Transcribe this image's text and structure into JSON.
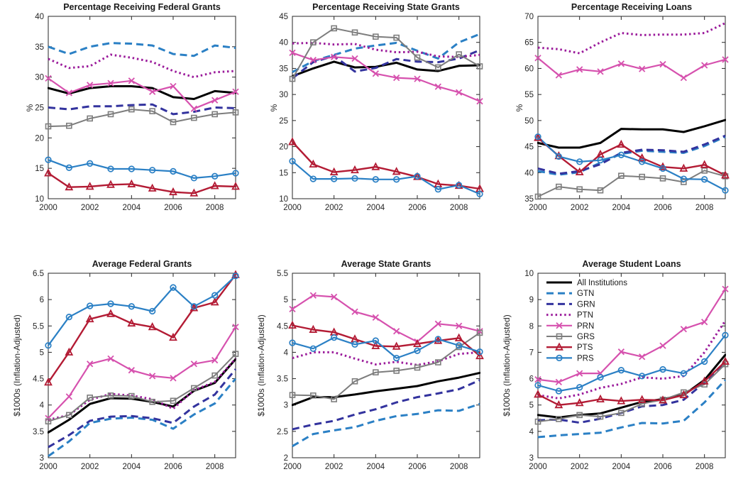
{
  "figure": {
    "background": "#ffffff",
    "axis_color": "#262626",
    "tick_label_color": "#262626",
    "title_color": "#1a1a1a"
  },
  "series_styles": [
    {
      "name": "All Institutions",
      "color": "#000000",
      "dash": "",
      "width": 3.0,
      "marker": "none"
    },
    {
      "name": "GTN",
      "color": "#2b80c5",
      "dash": "10 6",
      "width": 3.0,
      "marker": "none"
    },
    {
      "name": "GRN",
      "color": "#33339e",
      "dash": "10 6",
      "width": 3.0,
      "marker": "none"
    },
    {
      "name": "PTN",
      "color": "#9b1b9b",
      "dash": "2.5 3.8",
      "width": 3.0,
      "marker": "none"
    },
    {
      "name": "PRN",
      "color": "#d651ae",
      "dash": "",
      "width": 2.2,
      "marker": "x"
    },
    {
      "name": "GRS",
      "color": "#7d7d7d",
      "dash": "",
      "width": 2.0,
      "marker": "square"
    },
    {
      "name": "PTS",
      "color": "#b31b34",
      "dash": "",
      "width": 2.4,
      "marker": "triangle"
    },
    {
      "name": "PRS",
      "color": "#2b80c5",
      "dash": "",
      "width": 2.2,
      "marker": "circle"
    }
  ],
  "legend": {
    "location": "top-left-of-average-student-loans",
    "entries": [
      "All Institutions",
      "GTN",
      "GRN",
      "PTN",
      "PRN",
      "GRS",
      "PTS",
      "PRS"
    ]
  },
  "xticks": [
    2000,
    2002,
    2004,
    2006,
    2008
  ],
  "xtick_labels": [
    "2000",
    "2002",
    "2004",
    "2006",
    "2008"
  ],
  "chart_data": [
    {
      "type": "line",
      "title": "Percentage Receiving Federal Grants",
      "ylabel": "%",
      "xlim": [
        2000,
        2009
      ],
      "ylim": [
        10,
        40
      ],
      "yticks": [
        10,
        15,
        20,
        25,
        30,
        35,
        40
      ],
      "x": [
        2000,
        2001,
        2002,
        2003,
        2004,
        2005,
        2006,
        2007,
        2008,
        2009
      ],
      "legend_shown": false,
      "series": [
        {
          "name": "All Institutions",
          "values": [
            28.2,
            27.3,
            28.2,
            28.5,
            28.5,
            28.2,
            26.7,
            26.4,
            27.7,
            27.4
          ]
        },
        {
          "name": "GTN",
          "values": [
            35.0,
            33.8,
            35.0,
            35.6,
            35.5,
            35.2,
            33.8,
            33.5,
            35.2,
            34.8
          ]
        },
        {
          "name": "GRN",
          "values": [
            25.0,
            24.7,
            25.2,
            25.2,
            25.4,
            25.5,
            23.9,
            24.3,
            25.0,
            24.9
          ]
        },
        {
          "name": "PTN",
          "values": [
            33.0,
            31.5,
            31.8,
            33.7,
            33.2,
            32.5,
            31.0,
            30.0,
            30.8,
            31.0
          ]
        },
        {
          "name": "PRN",
          "values": [
            29.8,
            27.4,
            28.7,
            29.0,
            29.4,
            27.6,
            28.5,
            24.8,
            26.2,
            27.6
          ]
        },
        {
          "name": "GRS",
          "values": [
            21.9,
            22.0,
            23.2,
            23.9,
            24.7,
            24.4,
            22.6,
            23.3,
            23.9,
            24.2
          ]
        },
        {
          "name": "PTS",
          "values": [
            14.2,
            11.9,
            12.0,
            12.3,
            12.4,
            11.7,
            11.1,
            10.9,
            12.1,
            12.0
          ]
        },
        {
          "name": "PRS",
          "values": [
            16.4,
            15.1,
            15.8,
            14.9,
            14.9,
            14.7,
            14.5,
            13.4,
            13.7,
            14.2
          ]
        }
      ]
    },
    {
      "type": "line",
      "title": "Percentage Receiving State Grants",
      "ylabel": "%",
      "xlim": [
        2000,
        2009
      ],
      "ylim": [
        10,
        45
      ],
      "yticks": [
        10,
        15,
        20,
        25,
        30,
        35,
        40,
        45
      ],
      "x": [
        2000,
        2001,
        2002,
        2003,
        2004,
        2005,
        2006,
        2007,
        2008,
        2009
      ],
      "legend_shown": false,
      "series": [
        {
          "name": "All Institutions",
          "values": [
            33.5,
            35.0,
            36.3,
            35.2,
            35.3,
            36.1,
            34.8,
            34.5,
            35.5,
            35.6
          ]
        },
        {
          "name": "GTN",
          "values": [
            34.3,
            36.4,
            37.6,
            38.8,
            39.4,
            39.9,
            38.4,
            36.9,
            40.0,
            41.6
          ]
        },
        {
          "name": "GRN",
          "values": [
            33.1,
            36.2,
            37.4,
            34.4,
            35.1,
            36.8,
            36.3,
            36.2,
            36.9,
            38.5
          ]
        },
        {
          "name": "PTN",
          "values": [
            39.8,
            39.9,
            39.6,
            39.7,
            38.6,
            38.1,
            38.2,
            37.3,
            37.2,
            37.6
          ]
        },
        {
          "name": "PRN",
          "values": [
            38.0,
            36.6,
            37.2,
            36.9,
            34.0,
            33.2,
            33.0,
            31.5,
            30.4,
            28.7
          ]
        },
        {
          "name": "GRS",
          "values": [
            33.0,
            40.0,
            42.7,
            41.9,
            41.1,
            40.9,
            37.1,
            35.2,
            37.7,
            35.4
          ]
        },
        {
          "name": "PTS",
          "values": [
            20.9,
            16.6,
            15.1,
            15.5,
            16.1,
            15.2,
            14.2,
            12.8,
            12.5,
            11.9
          ]
        },
        {
          "name": "PRS",
          "values": [
            17.2,
            13.8,
            13.8,
            13.9,
            13.7,
            13.7,
            14.3,
            11.8,
            12.6,
            10.9
          ]
        }
      ]
    },
    {
      "type": "line",
      "title": "Percentage Receiving Loans",
      "ylabel": "%",
      "xlim": [
        2000,
        2009
      ],
      "ylim": [
        35,
        70
      ],
      "yticks": [
        35,
        40,
        45,
        50,
        55,
        60,
        65,
        70
      ],
      "x": [
        2000,
        2001,
        2002,
        2003,
        2004,
        2005,
        2006,
        2007,
        2008,
        2009
      ],
      "legend_shown": false,
      "series": [
        {
          "name": "All Institutions",
          "values": [
            45.7,
            44.8,
            44.8,
            45.7,
            48.4,
            48.3,
            48.3,
            47.8,
            48.9,
            50.1
          ]
        },
        {
          "name": "GTN",
          "values": [
            40.3,
            39.6,
            40.1,
            41.9,
            43.6,
            44.2,
            44.0,
            43.8,
            45.1,
            46.9
          ]
        },
        {
          "name": "GRN",
          "values": [
            40.8,
            39.8,
            40.3,
            41.6,
            43.8,
            44.4,
            44.3,
            44.0,
            45.4,
            47.1
          ]
        },
        {
          "name": "PTN",
          "values": [
            64.0,
            63.7,
            62.9,
            65.0,
            66.8,
            66.4,
            66.5,
            66.5,
            66.8,
            68.7
          ]
        },
        {
          "name": "PRN",
          "values": [
            62.0,
            58.7,
            59.8,
            59.4,
            60.9,
            59.9,
            60.8,
            58.2,
            60.6,
            61.7
          ]
        },
        {
          "name": "GRS",
          "values": [
            35.4,
            37.3,
            36.8,
            36.6,
            39.4,
            39.2,
            38.9,
            38.2,
            40.4,
            39.3
          ]
        },
        {
          "name": "PTS",
          "values": [
            46.7,
            43.2,
            40.1,
            43.5,
            45.4,
            42.8,
            41.1,
            40.8,
            41.5,
            39.5
          ]
        },
        {
          "name": "PRS",
          "values": [
            46.9,
            43.1,
            42.1,
            42.4,
            43.4,
            42.1,
            40.8,
            38.8,
            38.7,
            36.6
          ]
        }
      ]
    },
    {
      "type": "line",
      "title": "Average Federal Grants",
      "ylabel": "$1000s (Inflation-Adjusted)",
      "xlim": [
        2000,
        2009
      ],
      "ylim": [
        3,
        6.5
      ],
      "yticks": [
        3,
        3.5,
        4,
        4.5,
        5,
        5.5,
        6,
        6.5
      ],
      "x": [
        2000,
        2001,
        2002,
        2003,
        2004,
        2005,
        2006,
        2007,
        2008,
        2009
      ],
      "legend_shown": false,
      "series": [
        {
          "name": "All Institutions",
          "values": [
            3.48,
            3.72,
            4.02,
            4.13,
            4.12,
            4.06,
            3.97,
            4.27,
            4.42,
            4.87
          ]
        },
        {
          "name": "GTN",
          "values": [
            3.03,
            3.31,
            3.66,
            3.74,
            3.76,
            3.72,
            3.55,
            3.82,
            4.03,
            4.5
          ]
        },
        {
          "name": "GRN",
          "values": [
            3.2,
            3.43,
            3.7,
            3.78,
            3.79,
            3.75,
            3.66,
            3.97,
            4.2,
            4.68
          ]
        },
        {
          "name": "PTN",
          "values": [
            3.72,
            3.81,
            4.1,
            4.21,
            4.18,
            4.11,
            3.93,
            4.28,
            4.44,
            4.88
          ]
        },
        {
          "name": "PRN",
          "values": [
            3.75,
            4.16,
            4.78,
            4.88,
            4.66,
            4.55,
            4.51,
            4.78,
            4.85,
            5.48
          ]
        },
        {
          "name": "GRS",
          "values": [
            3.69,
            3.81,
            4.14,
            4.18,
            4.17,
            4.06,
            4.08,
            4.32,
            4.56,
            4.97
          ]
        },
        {
          "name": "PTS",
          "values": [
            4.43,
            5.0,
            5.63,
            5.73,
            5.55,
            5.48,
            5.28,
            5.84,
            5.95,
            6.47
          ]
        },
        {
          "name": "PRS",
          "values": [
            5.13,
            5.67,
            5.88,
            5.92,
            5.87,
            5.78,
            6.23,
            5.87,
            6.08,
            6.45
          ]
        }
      ]
    },
    {
      "type": "line",
      "title": "Average State Grants",
      "ylabel": "$1000s (Inflation-Adjusted)",
      "xlim": [
        2000,
        2009
      ],
      "ylim": [
        2,
        5.5
      ],
      "yticks": [
        2,
        2.5,
        3,
        3.5,
        4,
        4.5,
        5,
        5.5
      ],
      "x": [
        2000,
        2001,
        2002,
        2003,
        2004,
        2005,
        2006,
        2007,
        2008,
        2009
      ],
      "legend_shown": false,
      "series": [
        {
          "name": "All Institutions",
          "values": [
            3.0,
            3.15,
            3.15,
            3.2,
            3.26,
            3.31,
            3.36,
            3.45,
            3.52,
            3.61
          ]
        },
        {
          "name": "GTN",
          "values": [
            2.22,
            2.45,
            2.52,
            2.58,
            2.7,
            2.79,
            2.83,
            2.9,
            2.89,
            3.02
          ]
        },
        {
          "name": "GRN",
          "values": [
            2.54,
            2.63,
            2.7,
            2.82,
            2.92,
            3.05,
            3.15,
            3.22,
            3.3,
            3.47
          ]
        },
        {
          "name": "PTN",
          "values": [
            3.89,
            4.0,
            4.0,
            3.88,
            3.77,
            3.82,
            3.76,
            3.83,
            3.97,
            4.0
          ]
        },
        {
          "name": "PRN",
          "values": [
            4.82,
            5.08,
            5.05,
            4.77,
            4.66,
            4.4,
            4.2,
            4.54,
            4.5,
            4.4
          ]
        },
        {
          "name": "GRS",
          "values": [
            3.19,
            3.18,
            3.11,
            3.45,
            3.62,
            3.65,
            3.71,
            3.81,
            4.1,
            4.37
          ]
        },
        {
          "name": "PTS",
          "values": [
            4.51,
            4.43,
            4.38,
            4.25,
            4.12,
            4.11,
            4.16,
            4.22,
            4.27,
            3.93
          ]
        },
        {
          "name": "PRS",
          "values": [
            4.18,
            4.07,
            4.28,
            4.15,
            4.22,
            3.89,
            4.03,
            4.25,
            4.13,
            4.01
          ]
        }
      ]
    },
    {
      "type": "line",
      "title": "Average Student Loans",
      "ylabel": "$1000s (Inflation-Adjusted)",
      "xlim": [
        2000,
        2009
      ],
      "ylim": [
        3,
        10
      ],
      "yticks": [
        3,
        4,
        5,
        6,
        7,
        8,
        9,
        10
      ],
      "x": [
        2000,
        2001,
        2002,
        2003,
        2004,
        2005,
        2006,
        2007,
        2008,
        2009
      ],
      "legend_shown": true,
      "series": [
        {
          "name": "All Institutions",
          "values": [
            4.62,
            4.53,
            4.62,
            4.68,
            4.9,
            5.12,
            5.22,
            5.38,
            5.95,
            6.9
          ]
        },
        {
          "name": "GTN",
          "values": [
            3.78,
            3.85,
            3.9,
            3.95,
            4.15,
            4.32,
            4.3,
            4.4,
            5.1,
            5.95
          ]
        },
        {
          "name": "GRN",
          "values": [
            4.42,
            4.45,
            4.33,
            4.48,
            4.7,
            4.95,
            5.0,
            5.2,
            5.85,
            6.6
          ]
        },
        {
          "name": "PTN",
          "values": [
            5.38,
            5.25,
            5.4,
            5.65,
            5.8,
            6.05,
            6.0,
            6.1,
            7.0,
            8.2
          ]
        },
        {
          "name": "PRN",
          "values": [
            5.97,
            5.87,
            6.2,
            6.2,
            7.02,
            6.83,
            7.25,
            7.88,
            8.15,
            9.4
          ]
        },
        {
          "name": "GRS",
          "values": [
            4.37,
            4.47,
            4.62,
            4.56,
            4.7,
            5.05,
            5.2,
            5.48,
            5.78,
            6.55
          ]
        },
        {
          "name": "PTS",
          "values": [
            5.4,
            5.0,
            5.08,
            5.22,
            5.15,
            5.2,
            5.18,
            5.38,
            5.9,
            6.65
          ]
        },
        {
          "name": "PRS",
          "values": [
            5.75,
            5.53,
            5.67,
            6.05,
            6.32,
            6.1,
            6.35,
            6.2,
            6.65,
            7.65
          ]
        }
      ]
    }
  ]
}
